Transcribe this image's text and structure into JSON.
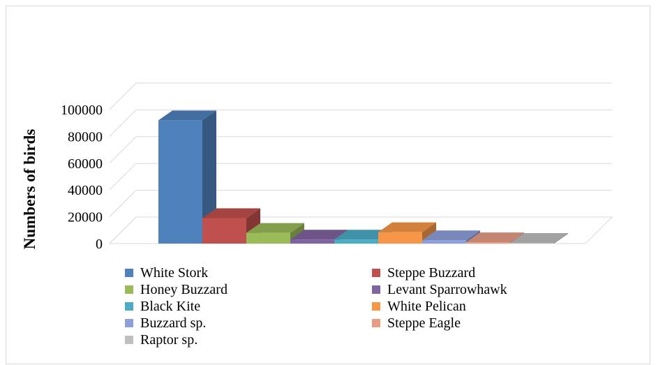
{
  "chart_data": {
    "type": "bar",
    "title": "",
    "xlabel": "",
    "ylabel": "Numbers of birds",
    "ylim": [
      0,
      100000
    ],
    "yticks": [
      "0",
      "20000",
      "40000",
      "60000",
      "80000",
      "100000"
    ],
    "grid": true,
    "legend_position": "bottom",
    "categories": [
      "White Stork",
      "Steppe Buzzard",
      "Honey Buzzard",
      "Levant Sparrowhawk",
      "Black Kite",
      "White Pelican",
      "Buzzard sp.",
      "Steppe Eagle",
      "Raptor sp."
    ],
    "values": [
      92000,
      19000,
      8000,
      3000,
      3000,
      8500,
      2500,
      1000,
      500
    ],
    "colors": [
      "#4f81bd",
      "#c0504d",
      "#9bbb59",
      "#8064a2",
      "#4bacc6",
      "#f79646",
      "#8da0db",
      "#e99c84",
      "#bfbfbf"
    ]
  }
}
